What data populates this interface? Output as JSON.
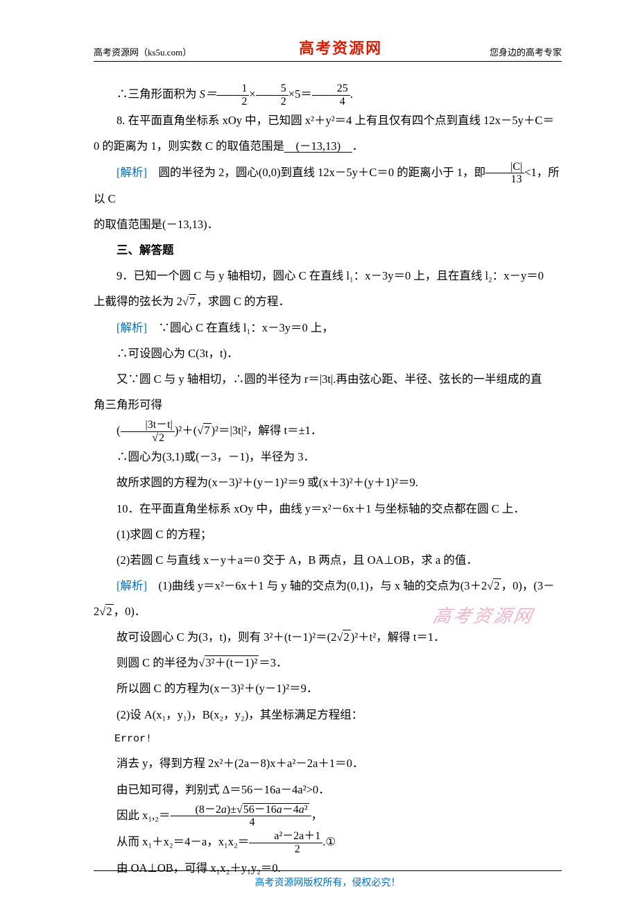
{
  "header": {
    "left": "高考资源网（ks5u.com）",
    "center": "高考资源网",
    "right": "您身边的高考专家"
  },
  "footer": "高考资源网版权所有，侵权必究！",
  "watermark": "高考资源网",
  "colors": {
    "accent": "#d81e06",
    "link": "#0070c0",
    "watermark": "#e9a6c0",
    "text": "#000000",
    "bg": "#ffffff"
  },
  "content": {
    "line_area": {
      "prefix": "∴三角形面积为 ",
      "s_eq": "S＝",
      "f1n": "1",
      "f1d": "2",
      "times": "×",
      "f2n": "5",
      "f2d": "2",
      "t5": "×5＝",
      "f3n": "25",
      "f3d": "4",
      "dot": "."
    },
    "q8": {
      "l1": "8. 在平面直角坐标系 xOy 中，已知圆 x²＋y²＝4 上有且仅有四个点到直线 12x－5y＋C＝",
      "l2_a": "0 的距离为 1，则实数 C 的取值范围是",
      "ans": "　(－13,13)　",
      "l2_b": "．"
    },
    "q8_sol": {
      "label": "[解析]",
      "a": "　圆的半径为 2，圆心(0,0)到直线 12x－5y＋C＝0 的距离小于 1，即",
      "frac_n": "|C|",
      "frac_d": "13",
      "b": "<1，所以 C",
      "c": "的取值范围是(－13,13)．"
    },
    "sec3": "三、解答题",
    "q9": {
      "l1": "9．已知一个圆 C 与 y 轴相切，圆心 C 在直线 l₁：x－3y＝0 上，且在直线 l₂：x－y＝0",
      "l2a": "上截得的弦长为 2",
      "l2b": "7",
      "l2c": "，求圆 C 的方程．"
    },
    "q9_sol": {
      "label": "[解析]",
      "s1": "　∵圆心 C 在直线 l₁：x－3y＝0 上，",
      "s2": "∴可设圆心为 C(3t，t)．",
      "s3": "又∵圆 C 与 y 轴相切，∴圆的半径为 r＝|3t|.再由弦心距、半径、弦长的一半组成的直",
      "s3b": "角三角形可得",
      "eq_a": "(",
      "eq_fn": "|3t－t|",
      "eq_fd": "√2",
      "eq_b": ")²＋(",
      "eq_rad": "7",
      "eq_c": ")²＝|3t|²，解得 t＝±1．",
      "s4": "∴圆心为(3,1)或(－3，－1)，半径为 3．",
      "s5": "故所求圆的方程为(x－3)²＋(y－1)²＝9 或(x＋3)²＋(y＋1)²＝9."
    },
    "q10": {
      "l1": "10．在平面直角坐标系 xOy 中，曲线 y＝x²－6x＋1 与坐标轴的交点都在圆 C 上．",
      "l2": "(1)求圆 C 的方程；",
      "l3": "(2)若圆 C 与直线 x－y＋a＝0 交于 A，B 两点，且 OA⊥OB，求 a 的值．"
    },
    "q10_sol": {
      "label": "[解析]",
      "p1a": "　(1)曲线 y＝x²－6x＋1 与 y 轴的交点为(0,1)，与 x 轴的交点为(3＋2",
      "p1r": "2",
      "p1b": "，0)，(3－",
      "p1c": "2",
      "p1r2": "2",
      "p1d": "，0)．",
      "p2a": "故可设圆心 C 为(3，t)，则有 3²＋(t－1)²＝(2",
      "p2r": "2",
      "p2b": ")²＋t²，解得 t＝1．",
      "p3a": "则圆 C 的半径为",
      "p3r": "3²＋(t－1)²",
      "p3b": "＝3．",
      "p4": "所以圆 C 的方程为(x－3)²＋(y－1)²＝9．",
      "p5": "(2)设 A(x₁，y₁)，B(x₂，y₂)，其坐标满足方程组：",
      "err": "Error!",
      "p6": "消去 y，得到方程 2x²＋(2a－8)x＋a²－2a＋1＝0．",
      "p7": "由已知可得，判别式 Δ＝56－16a－4a²>0．",
      "p8a": "因此 x₁,₂＝",
      "p8n": "(8－2a)±√(56－16a－4a²)",
      "p8d": "4",
      "p8b": "，",
      "p9a": "从而 x₁＋x₂＝4－a，x₁x₂＝",
      "p9n": "a²－2a＋1",
      "p9d": "2",
      "p9b": ".①",
      "p10": "由 OA⊥OB，可得 x₁x₂＋y₁y₂＝0."
    }
  }
}
